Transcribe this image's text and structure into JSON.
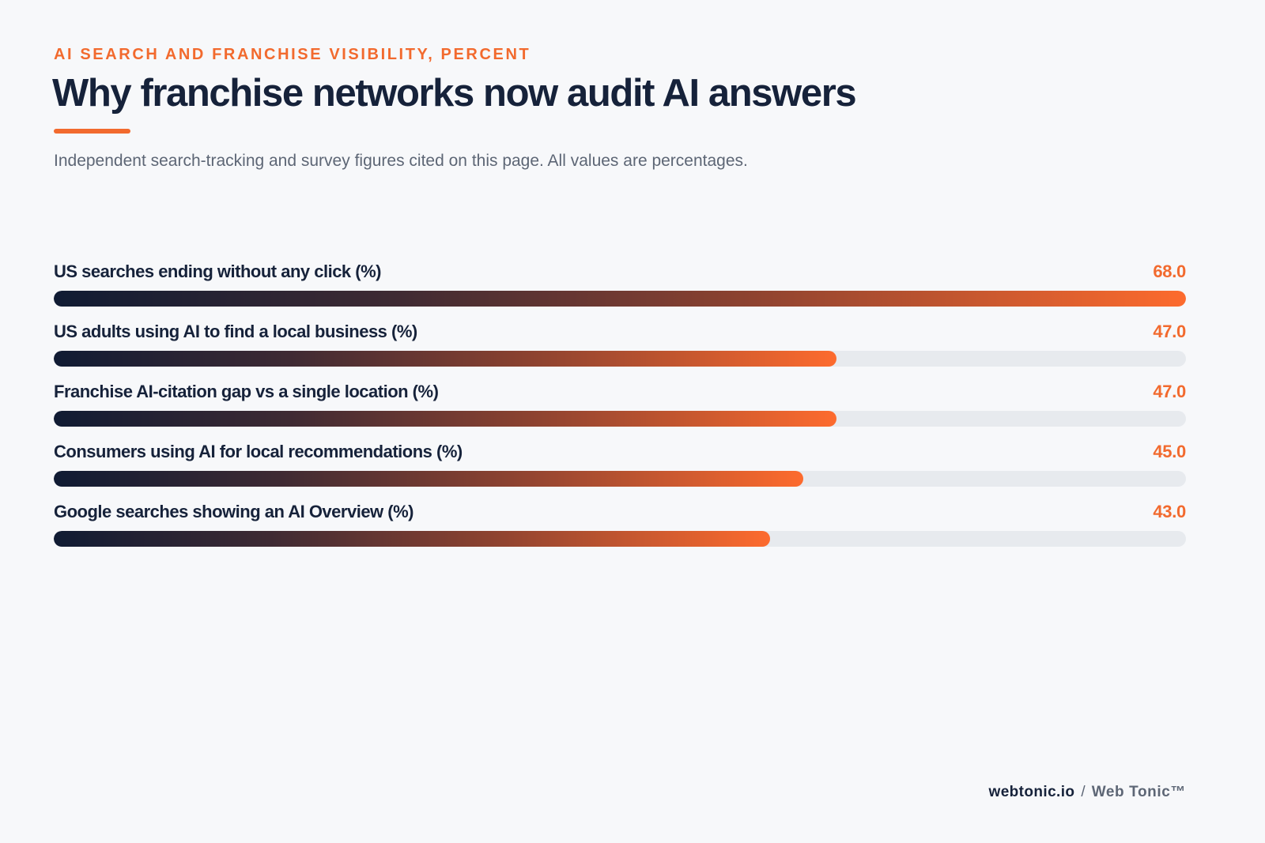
{
  "header": {
    "eyebrow": "AI SEARCH AND FRANCHISE VISIBILITY, PERCENT",
    "title": "Why franchise networks now audit AI answers",
    "subtitle": "Independent search-tracking and survey figures cited on this page. All values are percentages."
  },
  "chart_data": {
    "type": "bar",
    "orientation": "horizontal",
    "categories": [
      "US searches ending without any click (%)",
      "US adults using AI to find a local business (%)",
      "Franchise AI-citation gap vs a single location (%)",
      "Consumers using AI for local recommendations (%)",
      "Google searches showing an AI Overview (%)"
    ],
    "values": [
      68.0,
      47.0,
      47.0,
      45.0,
      43.0
    ],
    "value_labels": [
      "68.0",
      "47.0",
      "47.0",
      "45.0",
      "43.0"
    ],
    "xlim": [
      0,
      68.0
    ],
    "grid": false,
    "legend": "none",
    "colors": {
      "bar_start": "#101b33",
      "bar_end": "#fd6b2e",
      "track": "#e7eaee",
      "value_text": "#f26a2e"
    }
  },
  "footer": {
    "site": "webtonic.io",
    "separator": "/",
    "brand": "Web Tonic™"
  }
}
